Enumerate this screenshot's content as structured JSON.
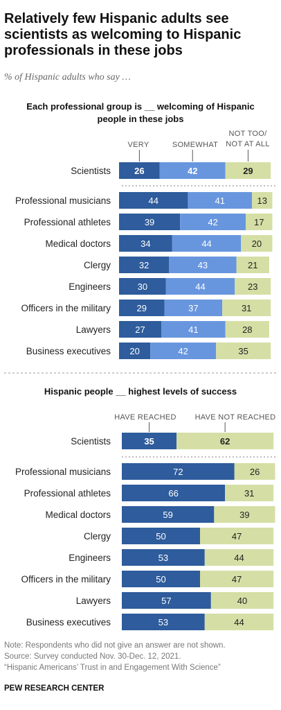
{
  "title": "Relatively few Hispanic adults see scientists as welcoming to Hispanic professionals in these jobs",
  "subtitle": "% of Hispanic adults who say …",
  "notes": [
    "Note: Respondents who did not give an answer are not shown.",
    "Source: Survey conducted Nov. 30-Dec. 12, 2021.",
    "“Hispanic Americans’ Trust in and Engagement With Science”"
  ],
  "source_org": "PEW RESEARCH CENTER",
  "colors": {
    "dark_blue": "#2e5c9c",
    "mid_blue": "#6896de",
    "light_green": "#d5dfa5"
  },
  "chart_data": [
    {
      "type": "bar",
      "stacked": true,
      "orientation": "horizontal",
      "title": "Each professional group is __ welcoming of Hispanic people in these jobs",
      "categories": [
        "Scientists",
        "Professional musicians",
        "Professional athletes",
        "Medical doctors",
        "Clergy",
        "Engineers",
        "Officers in the military",
        "Lawyers",
        "Business executives"
      ],
      "series": [
        {
          "name": "VERY",
          "color": "#2e5c9c",
          "values": [
            26,
            44,
            39,
            34,
            32,
            30,
            29,
            27,
            20
          ]
        },
        {
          "name": "SOMEWHAT",
          "color": "#6896de",
          "values": [
            42,
            41,
            42,
            44,
            43,
            44,
            37,
            41,
            42
          ]
        },
        {
          "name": "NOT TOO/ NOT AT ALL",
          "color": "#d5dfa5",
          "values": [
            29,
            13,
            17,
            20,
            21,
            23,
            31,
            28,
            35
          ]
        }
      ]
    },
    {
      "type": "bar",
      "stacked": true,
      "orientation": "horizontal",
      "title": "Hispanic people __ highest levels of success",
      "categories": [
        "Scientists",
        "Professional musicians",
        "Professional athletes",
        "Medical doctors",
        "Clergy",
        "Engineers",
        "Officers in the military",
        "Lawyers",
        "Business executives"
      ],
      "series": [
        {
          "name": "HAVE REACHED",
          "color": "#2e5c9c",
          "values": [
            35,
            72,
            66,
            59,
            50,
            53,
            50,
            57,
            53
          ]
        },
        {
          "name": "HAVE NOT REACHED",
          "color": "#d5dfa5",
          "values": [
            62,
            26,
            31,
            39,
            47,
            44,
            47,
            40,
            44
          ]
        }
      ]
    }
  ]
}
